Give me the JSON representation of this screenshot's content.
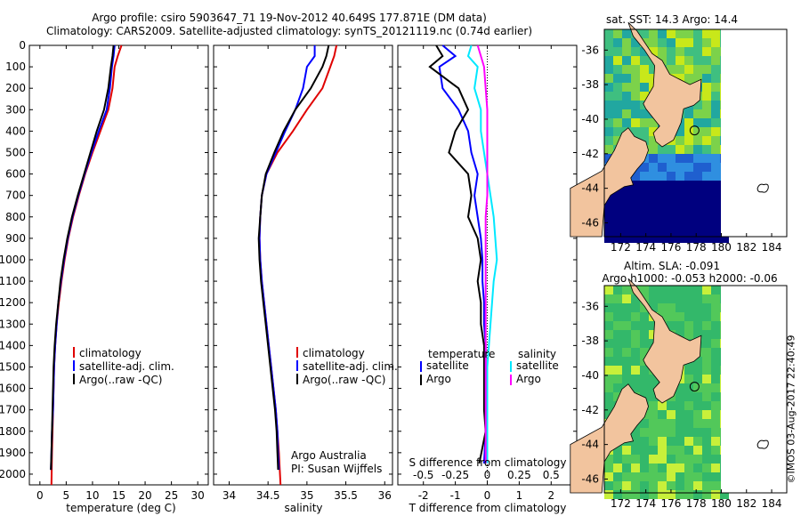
{
  "header": {
    "title_line1": "Argo profile: csiro 5903647_71 19-Nov-2012 40.649S 177.871E (DM data)",
    "title_line2": "Climatology: CARS2009. Satellite-adjusted climatology: synTS_20121119.nc (0.74d earlier)"
  },
  "colors": {
    "climatology": "#e00000",
    "satellite": "#0000ff",
    "argo": "#000000",
    "cyan": "#00e8ff",
    "magenta": "#ff00ff",
    "land": "#f2c49e",
    "ocean_deep": "#00007f"
  },
  "depth_axis": {
    "ticks": [
      "0",
      "100",
      "200",
      "300",
      "400",
      "500",
      "600",
      "700",
      "800",
      "900",
      "1000",
      "1100",
      "1200",
      "1300",
      "1400",
      "1500",
      "1600",
      "1700",
      "1800",
      "1900",
      "2000"
    ]
  },
  "panels": {
    "temperature": {
      "xlabel": "temperature (deg C)",
      "xticks": [
        "0",
        "5",
        "10",
        "15",
        "20",
        "25",
        "30"
      ],
      "legend": [
        "climatology",
        "satellite-adj. clim.",
        "Argo(..raw -QC)"
      ]
    },
    "salinity": {
      "xlabel": "salinity",
      "xticks": [
        "34",
        "34.5",
        "35",
        "35.5",
        "36"
      ],
      "legend": [
        "climatology",
        "satellite-adj. clim.",
        "Argo(..raw -QC)"
      ],
      "credit_line1": "Argo Australia",
      "credit_line2": "PI: Susan Wijffels"
    },
    "difference": {
      "xlabel": "T difference from climatology",
      "top_label": "S difference from climatology",
      "s_ticks": [
        "-0.5",
        "-0.25",
        "0",
        "0.25",
        "0.5"
      ],
      "t_ticks": [
        "-2",
        "-1",
        "0",
        "1",
        "2"
      ],
      "legend_temp_title": "temperature",
      "legend_sal_title": "salinity",
      "legend_items": [
        "satellite",
        "Argo",
        "satellite",
        "Argo"
      ]
    }
  },
  "maps": {
    "sst": {
      "title": "sat. SST: 14.3 Argo: 14.4",
      "lat_ticks": [
        "-36",
        "-38",
        "-40",
        "-42",
        "-44",
        "-46"
      ],
      "lon_ticks": [
        "172",
        "174",
        "176",
        "178",
        "180",
        "182",
        "184"
      ]
    },
    "sla": {
      "title_line1": "Altim. SLA: -0.091",
      "title_line2": "Argo h1000: -0.053 h2000: -0.06",
      "lat_ticks": [
        "-36",
        "-38",
        "-40",
        "-42",
        "-44",
        "-46"
      ],
      "lon_ticks": [
        "172",
        "174",
        "176",
        "178",
        "180",
        "182",
        "184"
      ]
    }
  },
  "watermark": "©IMOS 03-Aug-2017 22:40:49",
  "chart_data": [
    {
      "type": "line",
      "title": "temperature",
      "xlabel": "temperature (deg C)",
      "ylabel": "",
      "xlim": [
        -2,
        32
      ],
      "ylim": [
        2050,
        0
      ],
      "series": [
        {
          "name": "climatology",
          "x": [
            15.5,
            14.8,
            14.2,
            13.8,
            13.0,
            11.5,
            10.0,
            8.6,
            7.4,
            6.3,
            5.4,
            4.7,
            4.1,
            3.6,
            3.2,
            2.9,
            2.7,
            2.5,
            2.4,
            2.3,
            2.2
          ],
          "depth": [
            0,
            50,
            100,
            200,
            300,
            400,
            500,
            600,
            700,
            800,
            900,
            1000,
            1100,
            1200,
            1300,
            1400,
            1500,
            1700,
            1800,
            1900,
            2050
          ]
        },
        {
          "name": "satellite-adj. clim.",
          "x": [
            14.2,
            14.0,
            13.7,
            13.3,
            12.7,
            11.2,
            9.8,
            8.5,
            7.3,
            6.2,
            5.3,
            4.6,
            4.0,
            3.5,
            3.2,
            2.9,
            2.7,
            2.5,
            2.3,
            2.2,
            2.1
          ],
          "depth": [
            0,
            50,
            100,
            200,
            300,
            400,
            500,
            600,
            700,
            800,
            900,
            1000,
            1100,
            1200,
            1300,
            1400,
            1500,
            1700,
            1800,
            1900,
            1980
          ]
        },
        {
          "name": "Argo(..raw -QC)",
          "x": [
            14.0,
            13.8,
            13.5,
            13.0,
            12.2,
            10.8,
            9.6,
            8.4,
            7.2,
            6.1,
            5.2,
            4.5,
            3.9,
            3.5,
            3.1,
            2.8,
            2.6,
            2.4,
            2.3,
            2.2,
            2.1
          ],
          "depth": [
            0,
            50,
            100,
            200,
            300,
            400,
            500,
            600,
            700,
            800,
            900,
            1000,
            1100,
            1200,
            1300,
            1400,
            1500,
            1700,
            1800,
            1900,
            1980
          ]
        }
      ]
    },
    {
      "type": "line",
      "title": "salinity",
      "xlabel": "salinity",
      "ylabel": "",
      "xlim": [
        33.8,
        36.1
      ],
      "ylim": [
        2050,
        0
      ],
      "series": [
        {
          "name": "climatology",
          "x": [
            35.38,
            35.35,
            35.3,
            35.2,
            35.0,
            34.82,
            34.62,
            34.48,
            34.42,
            34.4,
            34.39,
            34.4,
            34.42,
            34.45,
            34.48,
            34.51,
            34.54,
            34.57,
            34.6,
            34.62,
            34.64,
            34.66
          ],
          "depth": [
            0,
            50,
            100,
            200,
            300,
            400,
            500,
            600,
            700,
            800,
            900,
            1000,
            1100,
            1200,
            1300,
            1400,
            1500,
            1600,
            1700,
            1800,
            1900,
            2050
          ]
        },
        {
          "name": "satellite-adj. clim.",
          "x": [
            35.1,
            35.1,
            35.0,
            34.95,
            34.85,
            34.72,
            34.6,
            34.48,
            34.42,
            34.4,
            34.39,
            34.4,
            34.42,
            34.45,
            34.48,
            34.51,
            34.54,
            34.57,
            34.6,
            34.62,
            34.63,
            34.64
          ],
          "depth": [
            0,
            50,
            100,
            200,
            300,
            400,
            500,
            600,
            700,
            800,
            900,
            1000,
            1100,
            1200,
            1300,
            1400,
            1500,
            1600,
            1700,
            1800,
            1900,
            1980
          ]
        },
        {
          "name": "Argo(..raw -QC)",
          "x": [
            35.28,
            35.25,
            35.2,
            35.05,
            34.85,
            34.7,
            34.58,
            34.47,
            34.42,
            34.4,
            34.38,
            34.39,
            34.41,
            34.44,
            34.47,
            34.5,
            34.53,
            34.56,
            34.59,
            34.61,
            34.62,
            34.63
          ],
          "depth": [
            0,
            50,
            100,
            200,
            300,
            400,
            500,
            600,
            700,
            800,
            900,
            1000,
            1100,
            1200,
            1300,
            1400,
            1500,
            1600,
            1700,
            1800,
            1900,
            1980
          ]
        }
      ]
    },
    {
      "type": "line",
      "title": "difference from climatology",
      "xlabel": "T difference from climatology",
      "ylabel": "",
      "xlim": [
        -2.8,
        2.8
      ],
      "ylim": [
        2050,
        0
      ],
      "series": [
        {
          "name": "temperature satellite",
          "x": [
            -1.4,
            -1.0,
            -1.5,
            -1.4,
            -0.9,
            -0.6,
            -0.5,
            -0.3,
            -0.4,
            -0.3,
            -0.2,
            -0.15,
            -0.15,
            -0.1,
            -0.1,
            -0.05,
            -0.05,
            -0.05,
            -0.05,
            -0.05,
            -0.1
          ],
          "depth": [
            0,
            50,
            100,
            200,
            300,
            400,
            500,
            600,
            700,
            800,
            900,
            1000,
            1100,
            1200,
            1300,
            1400,
            1500,
            1600,
            1700,
            1800,
            1950
          ]
        },
        {
          "name": "temperature Argo",
          "x": [
            -1.6,
            -1.4,
            -1.8,
            -0.9,
            -0.6,
            -1.0,
            -1.2,
            -0.6,
            -0.5,
            -0.6,
            -0.3,
            -0.2,
            -0.3,
            -0.2,
            -0.2,
            -0.1,
            -0.1,
            -0.1,
            -0.1,
            -0.05,
            -0.25
          ],
          "depth": [
            0,
            50,
            100,
            200,
            300,
            400,
            500,
            600,
            700,
            800,
            900,
            1000,
            1100,
            1200,
            1300,
            1400,
            1500,
            1600,
            1700,
            1800,
            1950
          ]
        },
        {
          "name": "salinity satellite",
          "x": [
            -0.5,
            -0.6,
            -0.3,
            -0.4,
            -0.2,
            -0.2,
            -0.1,
            0.0,
            0.1,
            0.2,
            0.25,
            0.3,
            0.2,
            0.15,
            0.1,
            0.05,
            0.0,
            0.0,
            0.0,
            0.0,
            0.0
          ],
          "depth": [
            0,
            50,
            100,
            200,
            300,
            400,
            500,
            600,
            700,
            800,
            900,
            1000,
            1100,
            1200,
            1300,
            1400,
            1500,
            1600,
            1700,
            1800,
            1950
          ]
        },
        {
          "name": "salinity Argo",
          "x": [
            -0.3,
            -0.2,
            -0.1,
            -0.05,
            0.0,
            0.0,
            0.0,
            0.0,
            0.0,
            -0.05,
            -0.05,
            -0.05,
            -0.05,
            -0.05,
            -0.05,
            -0.05,
            -0.05,
            -0.05,
            -0.05,
            -0.05,
            -0.05
          ],
          "depth": [
            0,
            50,
            100,
            200,
            300,
            400,
            500,
            600,
            700,
            800,
            900,
            1000,
            1100,
            1200,
            1300,
            1400,
            1500,
            1600,
            1700,
            1800,
            1950
          ]
        }
      ]
    }
  ]
}
